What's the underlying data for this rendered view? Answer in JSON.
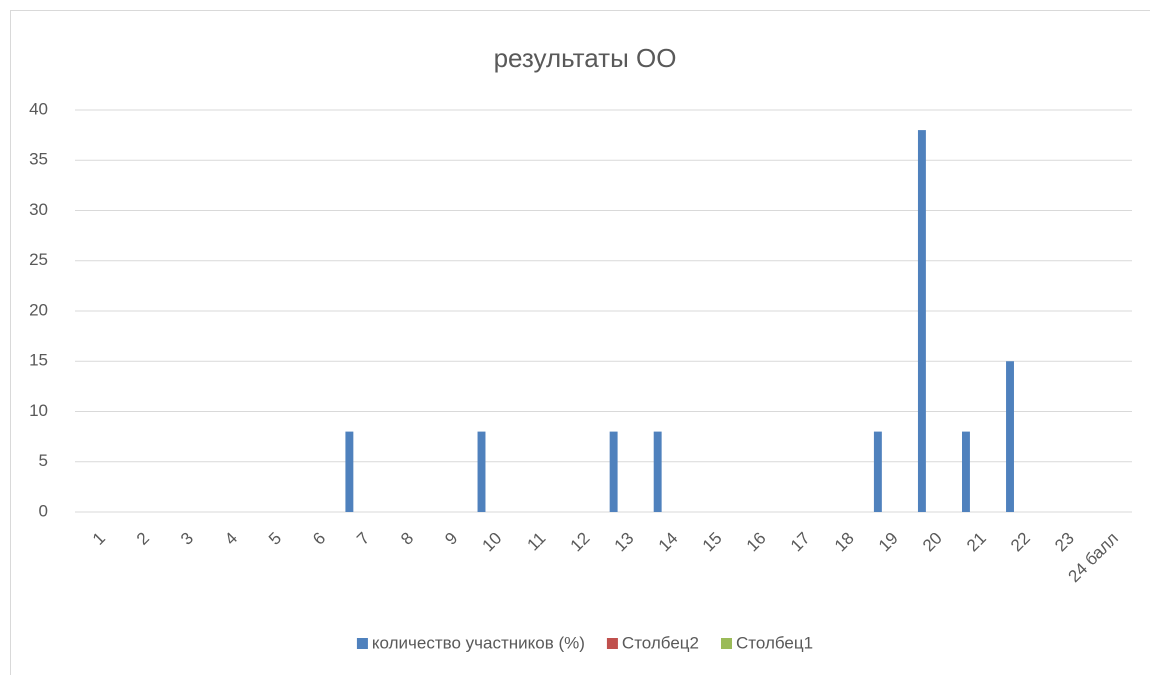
{
  "chart_data": {
    "type": "bar",
    "title": "результаты ОО",
    "categories": [
      "1",
      "2",
      "3",
      "4",
      "5",
      "6",
      "7",
      "8",
      "9",
      "10",
      "11",
      "12",
      "13",
      "14",
      "15",
      "16",
      "17",
      "18",
      "19",
      "20",
      "21",
      "22",
      "23",
      "24 балл"
    ],
    "series": [
      {
        "name": "количество участников (%)",
        "color": "#4f81bd",
        "values": [
          0,
          0,
          0,
          0,
          0,
          0,
          8,
          0,
          0,
          8,
          0,
          0,
          8,
          8,
          0,
          0,
          0,
          0,
          8,
          38,
          8,
          15,
          0,
          0
        ]
      },
      {
        "name": "Столбец2",
        "color": "#c0504d",
        "values": [
          null,
          null,
          null,
          null,
          null,
          null,
          null,
          null,
          null,
          null,
          null,
          null,
          null,
          null,
          null,
          null,
          null,
          null,
          null,
          null,
          null,
          null,
          null,
          null
        ]
      },
      {
        "name": "Столбец1",
        "color": "#9bbb59",
        "values": [
          null,
          null,
          null,
          null,
          null,
          null,
          null,
          null,
          null,
          null,
          null,
          null,
          null,
          null,
          null,
          null,
          null,
          null,
          null,
          null,
          null,
          null,
          null,
          null
        ]
      }
    ],
    "ylim": [
      0,
      40
    ],
    "yticks": [
      0,
      5,
      10,
      15,
      20,
      25,
      30,
      35,
      40
    ],
    "grid": true,
    "legend": "bottom"
  }
}
